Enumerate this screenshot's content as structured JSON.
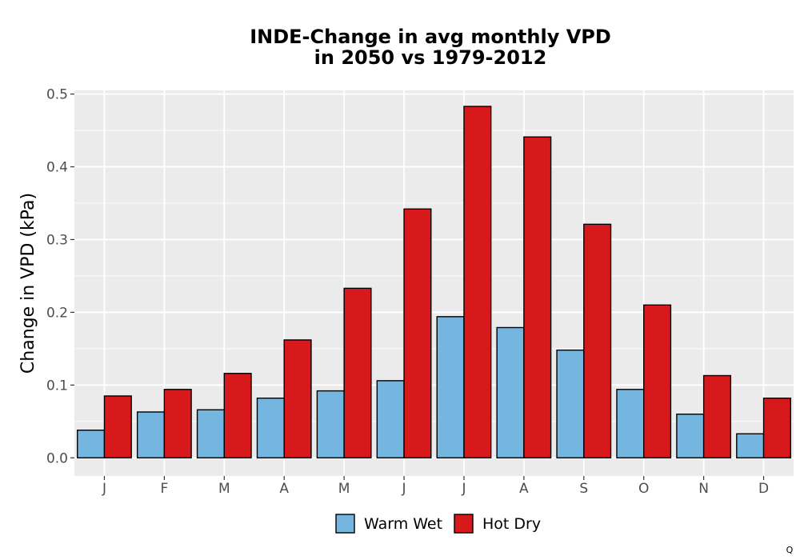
{
  "chart_data": {
    "type": "bar",
    "title_line1": "INDE-Change in avg monthly VPD",
    "title_line2": "in 2050 vs 1979-2012",
    "xlabel": "",
    "ylabel": "Change in VPD (kPa)",
    "categories": [
      "J",
      "F",
      "M",
      "A",
      "M",
      "J",
      "J",
      "A",
      "S",
      "O",
      "N",
      "D"
    ],
    "series": [
      {
        "name": "Warm Wet",
        "color": "#74b6e0",
        "values": [
          0.038,
          0.063,
          0.066,
          0.082,
          0.092,
          0.106,
          0.194,
          0.179,
          0.148,
          0.094,
          0.06,
          0.033
        ]
      },
      {
        "name": "Hot Dry",
        "color": "#d7191c",
        "values": [
          0.085,
          0.094,
          0.116,
          0.162,
          0.233,
          0.342,
          0.483,
          0.441,
          0.321,
          0.21,
          0.113,
          0.082
        ]
      }
    ],
    "ylim": [
      -0.025,
      0.505
    ],
    "yticks": [
      "0.0",
      "0.1",
      "0.2",
      "0.3",
      "0.4",
      "0.5"
    ],
    "ytick_values": [
      0,
      0.1,
      0.2,
      0.3,
      0.4,
      0.5
    ],
    "grid": true,
    "legend_position": "bottom"
  },
  "corner_mark": "Q"
}
